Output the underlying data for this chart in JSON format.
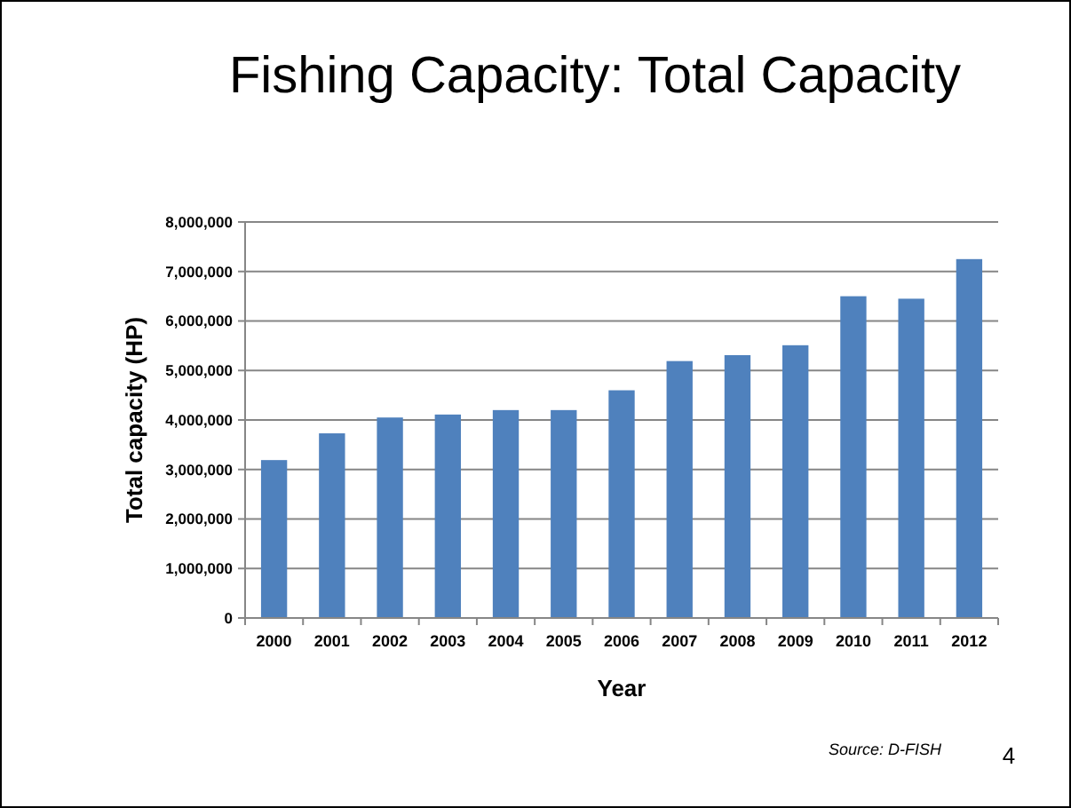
{
  "chart_data": {
    "type": "bar",
    "title": "Fishing Capacity: Total Capacity",
    "xlabel": "Year",
    "ylabel": "Total capacity (HP)",
    "categories": [
      "2000",
      "2001",
      "2002",
      "2003",
      "2004",
      "2005",
      "2006",
      "2007",
      "2008",
      "2009",
      "2010",
      "2011",
      "2012"
    ],
    "values": [
      3190000,
      3730000,
      4050000,
      4110000,
      4200000,
      4200000,
      4600000,
      5190000,
      5310000,
      5510000,
      6500000,
      6450000,
      7250000
    ],
    "color": "#4f81bd",
    "ylim": [
      0,
      8000000
    ],
    "yticks": [
      {
        "value": 0,
        "label": "0"
      },
      {
        "value": 1000000,
        "label": "1,000,000"
      },
      {
        "value": 2000000,
        "label": "2,000,000"
      },
      {
        "value": 3000000,
        "label": "3,000,000"
      },
      {
        "value": 4000000,
        "label": "4,000,000"
      },
      {
        "value": 5000000,
        "label": "5,000,000"
      },
      {
        "value": 6000000,
        "label": "6,000,000"
      },
      {
        "value": 7000000,
        "label": "7,000,000"
      },
      {
        "value": 8000000,
        "label": "8,000,000"
      }
    ],
    "grid": "y",
    "annotations": [
      "Source: D-FISH",
      "4"
    ]
  }
}
